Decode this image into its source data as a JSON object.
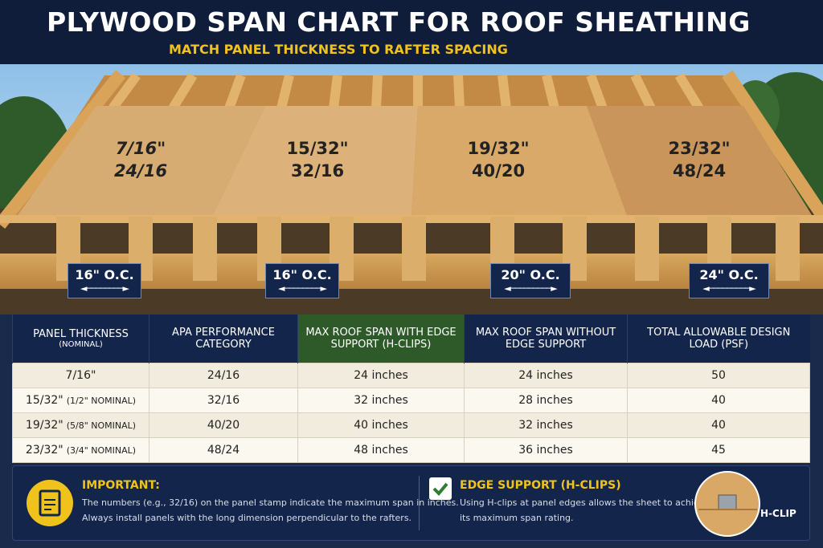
{
  "header": {
    "title": "PLYWOOD SPAN CHART FOR ROOF SHEATHING",
    "subtitle": "MATCH PANEL THICKNESS TO RAFTER SPACING"
  },
  "panels": [
    {
      "thickness": "7/16\"",
      "rating": "24/16"
    },
    {
      "thickness": "15/32\"",
      "rating": "32/16"
    },
    {
      "thickness": "19/32\"",
      "rating": "40/20"
    },
    {
      "thickness": "23/32\"",
      "rating": "48/24"
    }
  ],
  "spacings": [
    "16\" O.C.",
    "16\" O.C.",
    "20\" O.C.",
    "24\" O.C."
  ],
  "table": {
    "headers": [
      {
        "title": "PANEL THICKNESS",
        "note": "(NOMINAL)"
      },
      {
        "title": "APA PERFORMANCE CATEGORY"
      },
      {
        "title": "MAX ROOF SPAN WITH EDGE SUPPORT (H-CLIPS)"
      },
      {
        "title": "MAX ROOF SPAN WITHOUT EDGE SUPPORT"
      },
      {
        "title": "TOTAL ALLOWABLE DESIGN LOAD (PSF)"
      }
    ],
    "rows": [
      {
        "thickness": "7/16\"",
        "category": "24/16",
        "with_clips": "24 inches",
        "without_clips": "24 inches",
        "load": 50
      },
      {
        "thickness": "15/32\"",
        "nominal": "(1/2\" NOMINAL)",
        "category": "32/16",
        "with_clips": "32 inches",
        "without_clips": "28 inches",
        "load": 40
      },
      {
        "thickness": "19/32\"",
        "nominal": "(5/8\" NOMINAL)",
        "category": "40/20",
        "with_clips": "40 inches",
        "without_clips": "32 inches",
        "load": 40
      },
      {
        "thickness": "23/32\"",
        "nominal": "(3/4\" NOMINAL)",
        "category": "48/24",
        "with_clips": "48 inches",
        "without_clips": "36 inches",
        "load": 45
      }
    ]
  },
  "notes": [
    {
      "title": "IMPORTANT:",
      "lines": [
        "The numbers (e.g., 32/16) on the panel stamp indicate the maximum span in inches.",
        "Always install panels with the long dimension perpendicular to the rafters."
      ]
    },
    {
      "title": "EDGE SUPPORT (H-CLIPS)",
      "lines": [
        "Using H-clips at panel edges allows the sheet to achieve",
        "its maximum span rating."
      ]
    }
  ],
  "callout": "H-CLIP"
}
